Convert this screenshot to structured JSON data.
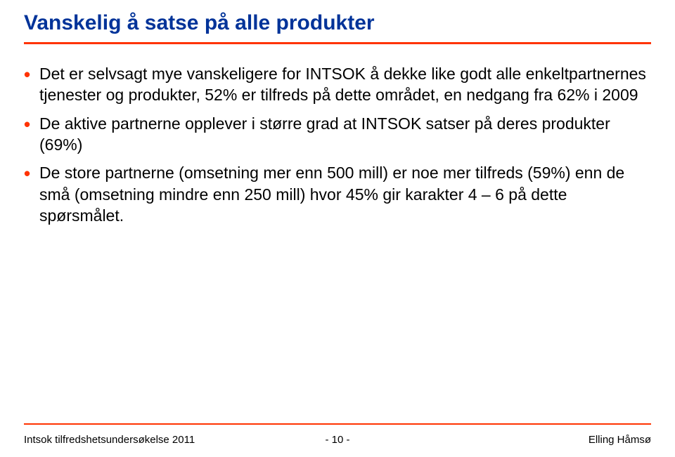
{
  "title": "Vanskelig å satse på alle produkter",
  "title_color": "#003399",
  "accent_color": "#ff3300",
  "body_text_color": "#000000",
  "bullets": [
    "Det er selvsagt mye vanskeligere for INTSOK å dekke like godt alle enkeltpartnernes tjenester og produkter, 52% er tilfreds på dette området, en nedgang fra 62% i 2009",
    "De aktive partnerne opplever i større grad at INTSOK satser på deres produkter (69%)",
    "De store partnerne (omsetning mer enn 500 mill) er noe mer tilfreds (59%) enn de små (omsetning mindre enn 250 mill) hvor 45% gir karakter 4 – 6 på dette spørsmålet."
  ],
  "footer": {
    "left": "Intsok tilfredshetsundersøkelse 2011",
    "page": "- 10 -",
    "right": "Elling Håmsø"
  }
}
